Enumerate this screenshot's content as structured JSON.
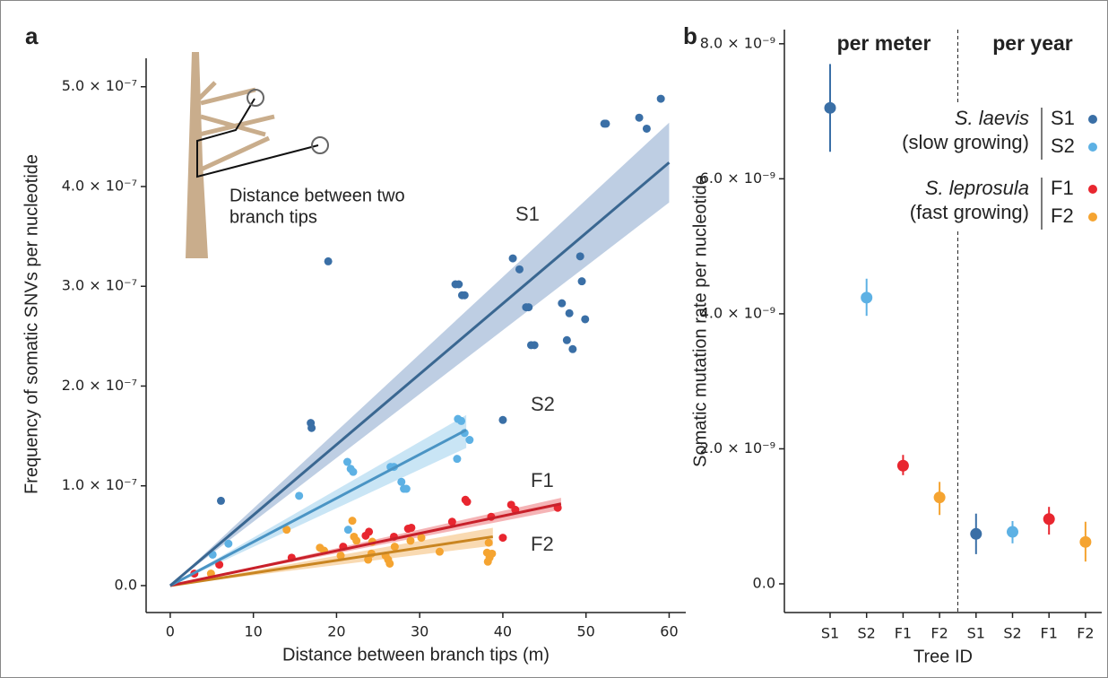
{
  "chart_data": [
    {
      "type": "scatter",
      "panel_label": "a",
      "xlabel": "Distance between branch tips (m)",
      "ylabel": "Frequency of somatic SNVs per nucleotide",
      "annotation": [
        "Distance between two",
        "branch tips"
      ],
      "xlim": [
        -2.9,
        62
      ],
      "ylim": [
        -2.7e-08,
        5.51e-07
      ],
      "xticks": [
        0,
        10,
        20,
        30,
        40,
        50,
        60
      ],
      "yticks": [
        {
          "value": 0,
          "label": "0.0"
        },
        {
          "value": 1e-07,
          "label": "1.0 × 10⁻⁷"
        },
        {
          "value": 2e-07,
          "label": "2.0 × 10⁻⁷"
        },
        {
          "value": 3e-07,
          "label": "3.0 × 10⁻⁷"
        },
        {
          "value": 4e-07,
          "label": "4.0 × 10⁻⁷"
        },
        {
          "value": 5e-07,
          "label": "5.0 × 10⁻⁷"
        }
      ],
      "series": [
        {
          "name": "S1",
          "color": "#3a6fa6",
          "band_color": "#b3c6de",
          "line_color": "#3a6791",
          "x": [
            59.0,
            52.2,
            52.4,
            56.4,
            57.3,
            19.0,
            41.2,
            42.0,
            49.3,
            49.5,
            34.3,
            34.7,
            35.1,
            35.4,
            42.8,
            43.1,
            47.1,
            48.0,
            49.9,
            43.4,
            43.8,
            47.7,
            48.4,
            40.0,
            16.9,
            17.0,
            6.1
          ],
          "values": [
            4.88e-07,
            4.63e-07,
            4.63e-07,
            4.69e-07,
            4.58e-07,
            3.25e-07,
            3.28e-07,
            3.17e-07,
            3.3e-07,
            3.05e-07,
            3.02e-07,
            3.02e-07,
            2.91e-07,
            2.91e-07,
            2.79e-07,
            2.79e-07,
            2.83e-07,
            2.73e-07,
            2.67e-07,
            2.41e-07,
            2.41e-07,
            2.46e-07,
            2.37e-07,
            1.66e-07,
            1.63e-07,
            1.58e-07,
            8.5e-08
          ],
          "fit": {
            "x": [
              0,
              60
            ],
            "y": [
              0,
              4.24e-07
            ],
            "lower": [
              0,
              3.84e-07
            ],
            "upper": [
              0,
              4.64e-07
            ]
          }
        },
        {
          "name": "S2",
          "color": "#5db1e4",
          "band_color": "#bfe0f3",
          "line_color": "#4a94c4",
          "x": [
            34.6,
            35.0,
            35.4,
            36.0,
            34.5,
            21.3,
            21.7,
            22.0,
            26.9,
            26.5,
            27.8,
            28.1,
            28.4,
            15.5,
            21.4,
            7.0,
            5.1
          ],
          "values": [
            1.67e-07,
            1.65e-07,
            1.53e-07,
            1.46e-07,
            1.27e-07,
            1.24e-07,
            1.17e-07,
            1.14e-07,
            1.19e-07,
            1.19e-07,
            1.04e-07,
            9.7e-08,
            9.7e-08,
            9e-08,
            5.6e-08,
            4.2e-08,
            3.1e-08
          ],
          "fit": {
            "x": [
              0,
              35.6
            ],
            "y": [
              0,
              1.56e-07
            ],
            "lower": [
              0,
              1.38e-07
            ],
            "upper": [
              0,
              1.71e-07
            ]
          }
        },
        {
          "name": "F1",
          "color": "#e8262f",
          "band_color": "#f3a7a9",
          "line_color": "#c8202a",
          "x": [
            46.6,
            41.0,
            41.5,
            35.5,
            35.7,
            38.6,
            33.9,
            29.0,
            28.6,
            40.0,
            23.9,
            23.5,
            14.6,
            5.9,
            2.9,
            20.8,
            26.9
          ],
          "values": [
            7.8e-08,
            8.1e-08,
            7.6e-08,
            8.6e-08,
            8.4e-08,
            6.9e-08,
            6.4e-08,
            5.8e-08,
            5.7e-08,
            4.8e-08,
            5.4e-08,
            5e-08,
            2.8e-08,
            2.1e-08,
            1.2e-08,
            3.9e-08,
            4.9e-08
          ],
          "fit": {
            "x": [
              0,
              47
            ],
            "y": [
              0,
              8.2e-08
            ],
            "lower": [
              0,
              7.6e-08
            ],
            "upper": [
              0,
              8.8e-08
            ]
          }
        },
        {
          "name": "F2",
          "color": "#f5a431",
          "band_color": "#f8d3a4",
          "line_color": "#c98521",
          "x": [
            21.9,
            14.0,
            22.1,
            22.4,
            18.0,
            18.5,
            24.3,
            27.0,
            28.9,
            30.2,
            24.2,
            23.8,
            25.9,
            26.2,
            26.4,
            20.5,
            32.4,
            38.3,
            38.1,
            38.4,
            38.2,
            38.7,
            4.9
          ],
          "values": [
            6.5e-08,
            5.6e-08,
            4.9e-08,
            4.5e-08,
            3.8e-08,
            3.5e-08,
            4.4e-08,
            3.9e-08,
            4.5e-08,
            4.8e-08,
            3.2e-08,
            2.6e-08,
            3e-08,
            2.6e-08,
            2.2e-08,
            3e-08,
            3.4e-08,
            4.3e-08,
            3.3e-08,
            2.8e-08,
            2.4e-08,
            3.2e-08,
            1.2e-08
          ],
          "fit": {
            "x": [
              0,
              38.8
            ],
            "y": [
              0,
              4.9e-08
            ],
            "lower": [
              0,
              4e-08
            ],
            "upper": [
              0,
              5.8e-08
            ]
          }
        }
      ]
    },
    {
      "type": "errorbar",
      "panel_label": "b",
      "xlabel": "Tree ID",
      "ylabel": "Somatic mutation rate per nucleotide",
      "group_labels": [
        "per meter",
        "per year"
      ],
      "categories": [
        "S1",
        "S2",
        "F1",
        "F2",
        "S1",
        "S2",
        "F1",
        "F2"
      ],
      "values": [
        7.05e-09,
        4.24e-09,
        1.75e-09,
        1.28e-09,
        7.4e-10,
        7.7e-10,
        9.6e-10,
        6.2e-10
      ],
      "lower": [
        6.4e-09,
        3.97e-09,
        1.61e-09,
        1.02e-09,
        4.4e-10,
        6e-10,
        7.3e-10,
        3.3e-10
      ],
      "upper": [
        7.7e-09,
        4.52e-09,
        1.91e-09,
        1.51e-09,
        1.04e-09,
        9.3e-10,
        1.14e-09,
        9.2e-10
      ],
      "colors": [
        "#3a6fa6",
        "#5db1e4",
        "#e8262f",
        "#f5a431",
        "#3a6fa6",
        "#5db1e4",
        "#e8262f",
        "#f5a431"
      ],
      "ylim": [
        -4.25e-10,
        8.21e-09
      ],
      "yticks": [
        {
          "value": 0,
          "label": "0.0"
        },
        {
          "value": 2e-09,
          "label": "2.0 × 10⁻⁹"
        },
        {
          "value": 4e-09,
          "label": "4.0 × 10⁻⁹"
        },
        {
          "value": 6e-09,
          "label": "6.0 × 10⁻⁹"
        },
        {
          "value": 8e-09,
          "label": "8.0 × 10⁻⁹"
        }
      ],
      "legend": [
        {
          "species": "S. laevis",
          "note": "(slow growing)",
          "trees": [
            "S1",
            "S2"
          ],
          "colors": [
            "#3a6fa6",
            "#5db1e4"
          ]
        },
        {
          "species": "S. leprosula",
          "note": "(fast growing)",
          "trees": [
            "F1",
            "F2"
          ],
          "colors": [
            "#e8262f",
            "#f5a431"
          ]
        }
      ]
    }
  ]
}
